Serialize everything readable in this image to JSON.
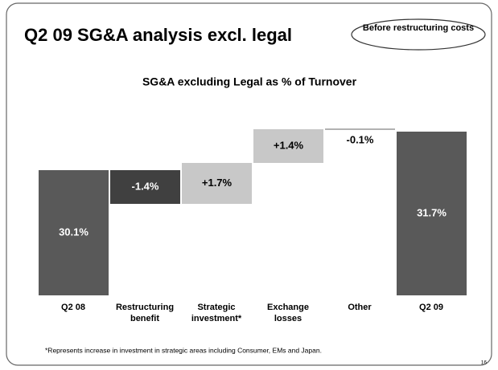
{
  "header": {
    "title": "Q2 09 SG&A analysis excl. legal",
    "badge": "Before restructuring costs"
  },
  "chart_data": {
    "type": "waterfall",
    "title": "SG&A excluding Legal as % of Turnover",
    "categories": [
      "Q2 08",
      "Restructuring benefit",
      "Strategic investment*",
      "Exchange losses",
      "Other",
      "Q2 09"
    ],
    "values": [
      30.1,
      -1.4,
      1.7,
      1.4,
      -0.1,
      31.7
    ],
    "value_labels": [
      "30.1%",
      "-1.4%",
      "+1.7%",
      "+1.4%",
      "-0.1%",
      "31.7%"
    ],
    "is_total": [
      true,
      false,
      false,
      false,
      false,
      true
    ],
    "colors": [
      "#595959",
      "#404040",
      "#c8c8c8",
      "#c8c8c8",
      "#ffffff",
      "#595959"
    ],
    "ylim": [
      24.9,
      32.3
    ]
  },
  "footnote": "*Represents increase in investment in strategic areas including Consumer, EMs and Japan.",
  "page_number": "16"
}
